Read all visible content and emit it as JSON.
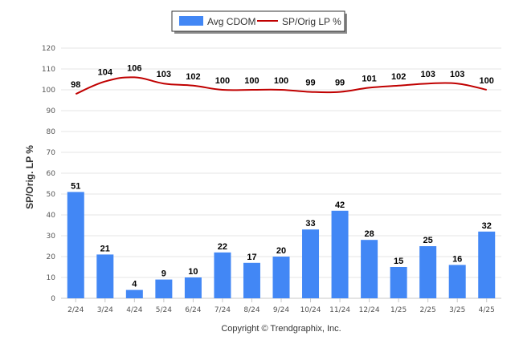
{
  "chart_data": {
    "type": "bar",
    "categories": [
      "2/24",
      "3/24",
      "4/24",
      "5/24",
      "6/24",
      "7/24",
      "8/24",
      "9/24",
      "10/24",
      "11/24",
      "12/24",
      "1/25",
      "2/25",
      "3/25",
      "4/25"
    ],
    "series": [
      {
        "name": "Avg CDOM",
        "type": "bar",
        "color": "#4287f5",
        "values": [
          51,
          21,
          4,
          9,
          10,
          22,
          17,
          20,
          33,
          42,
          28,
          15,
          25,
          16,
          32
        ]
      },
      {
        "name": "SP/Orig LP %",
        "type": "line",
        "color": "#c00000",
        "values": [
          98,
          104,
          106,
          103,
          102,
          100,
          100,
          100,
          99,
          99,
          101,
          102,
          103,
          103,
          100
        ]
      }
    ],
    "ylabel": "SP/Orig. LP %",
    "ylim": [
      0,
      120
    ],
    "yticks": [
      0,
      10,
      20,
      30,
      40,
      50,
      60,
      70,
      80,
      90,
      100,
      110,
      120
    ],
    "grid": true,
    "legend_position": "top-center",
    "credit": "Copyright © Trendgraphix, Inc."
  }
}
